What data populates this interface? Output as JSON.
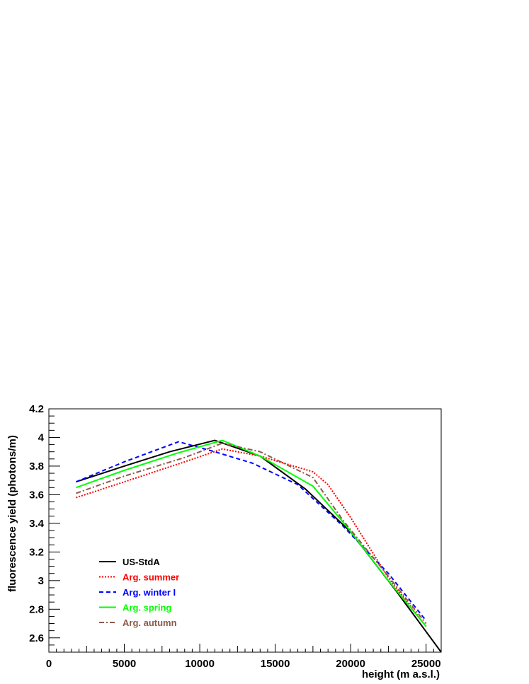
{
  "chart_data": {
    "type": "line",
    "title": "",
    "xlabel": "height (m a.s.l.)",
    "ylabel": "fluorescence yield (photons/m)",
    "xlim": [
      0,
      26000
    ],
    "ylim": [
      2.5,
      4.2
    ],
    "x_ticks": [
      "0",
      "5000",
      "10000",
      "15000",
      "20000",
      "25000"
    ],
    "y_ticks": [
      "2.6",
      "2.8",
      "3",
      "3.2",
      "3.4",
      "3.6",
      "3.8",
      "4",
      "4.2"
    ],
    "grid": false,
    "legend_placement": "bottom-left",
    "series": [
      {
        "name": "US-StdA",
        "color": "#000000",
        "dash": "solid",
        "x": [
          1800,
          5000,
          8000,
          11000,
          14000,
          17000,
          20000,
          23000,
          26000
        ],
        "y": [
          3.69,
          3.8,
          3.9,
          3.98,
          3.87,
          3.64,
          3.34,
          2.93,
          2.5
        ]
      },
      {
        "name": "Arg. summer",
        "color": "#ff0000",
        "dash": "dotted",
        "x": [
          1800,
          5000,
          9000,
          11500,
          14000,
          17500,
          18500,
          20000,
          22500,
          25000
        ],
        "y": [
          3.58,
          3.69,
          3.83,
          3.92,
          3.87,
          3.76,
          3.67,
          3.44,
          3.02,
          2.68
        ]
      },
      {
        "name": "Arg. winter I",
        "color": "#0000ff",
        "dash": "dashed",
        "x": [
          1800,
          5000,
          8600,
          11000,
          13500,
          16500,
          19500,
          22500,
          25000
        ],
        "y": [
          3.69,
          3.83,
          3.97,
          3.9,
          3.82,
          3.67,
          3.38,
          3.05,
          2.72
        ]
      },
      {
        "name": "Arg. spring",
        "color": "#00ff00",
        "dash": "solid",
        "x": [
          1800,
          5000,
          8500,
          11500,
          14000,
          17500,
          19800,
          22500,
          25000
        ],
        "y": [
          3.65,
          3.77,
          3.89,
          3.98,
          3.87,
          3.66,
          3.37,
          3.0,
          2.68
        ]
      },
      {
        "name": "Arg. autumn",
        "color": "#8b5a4a",
        "dash": "dashdot",
        "x": [
          1800,
          5000,
          9000,
          11500,
          14000,
          17500,
          19500,
          22500,
          25000
        ],
        "y": [
          3.61,
          3.73,
          3.86,
          3.96,
          3.9,
          3.72,
          3.42,
          3.03,
          2.7
        ]
      }
    ]
  }
}
